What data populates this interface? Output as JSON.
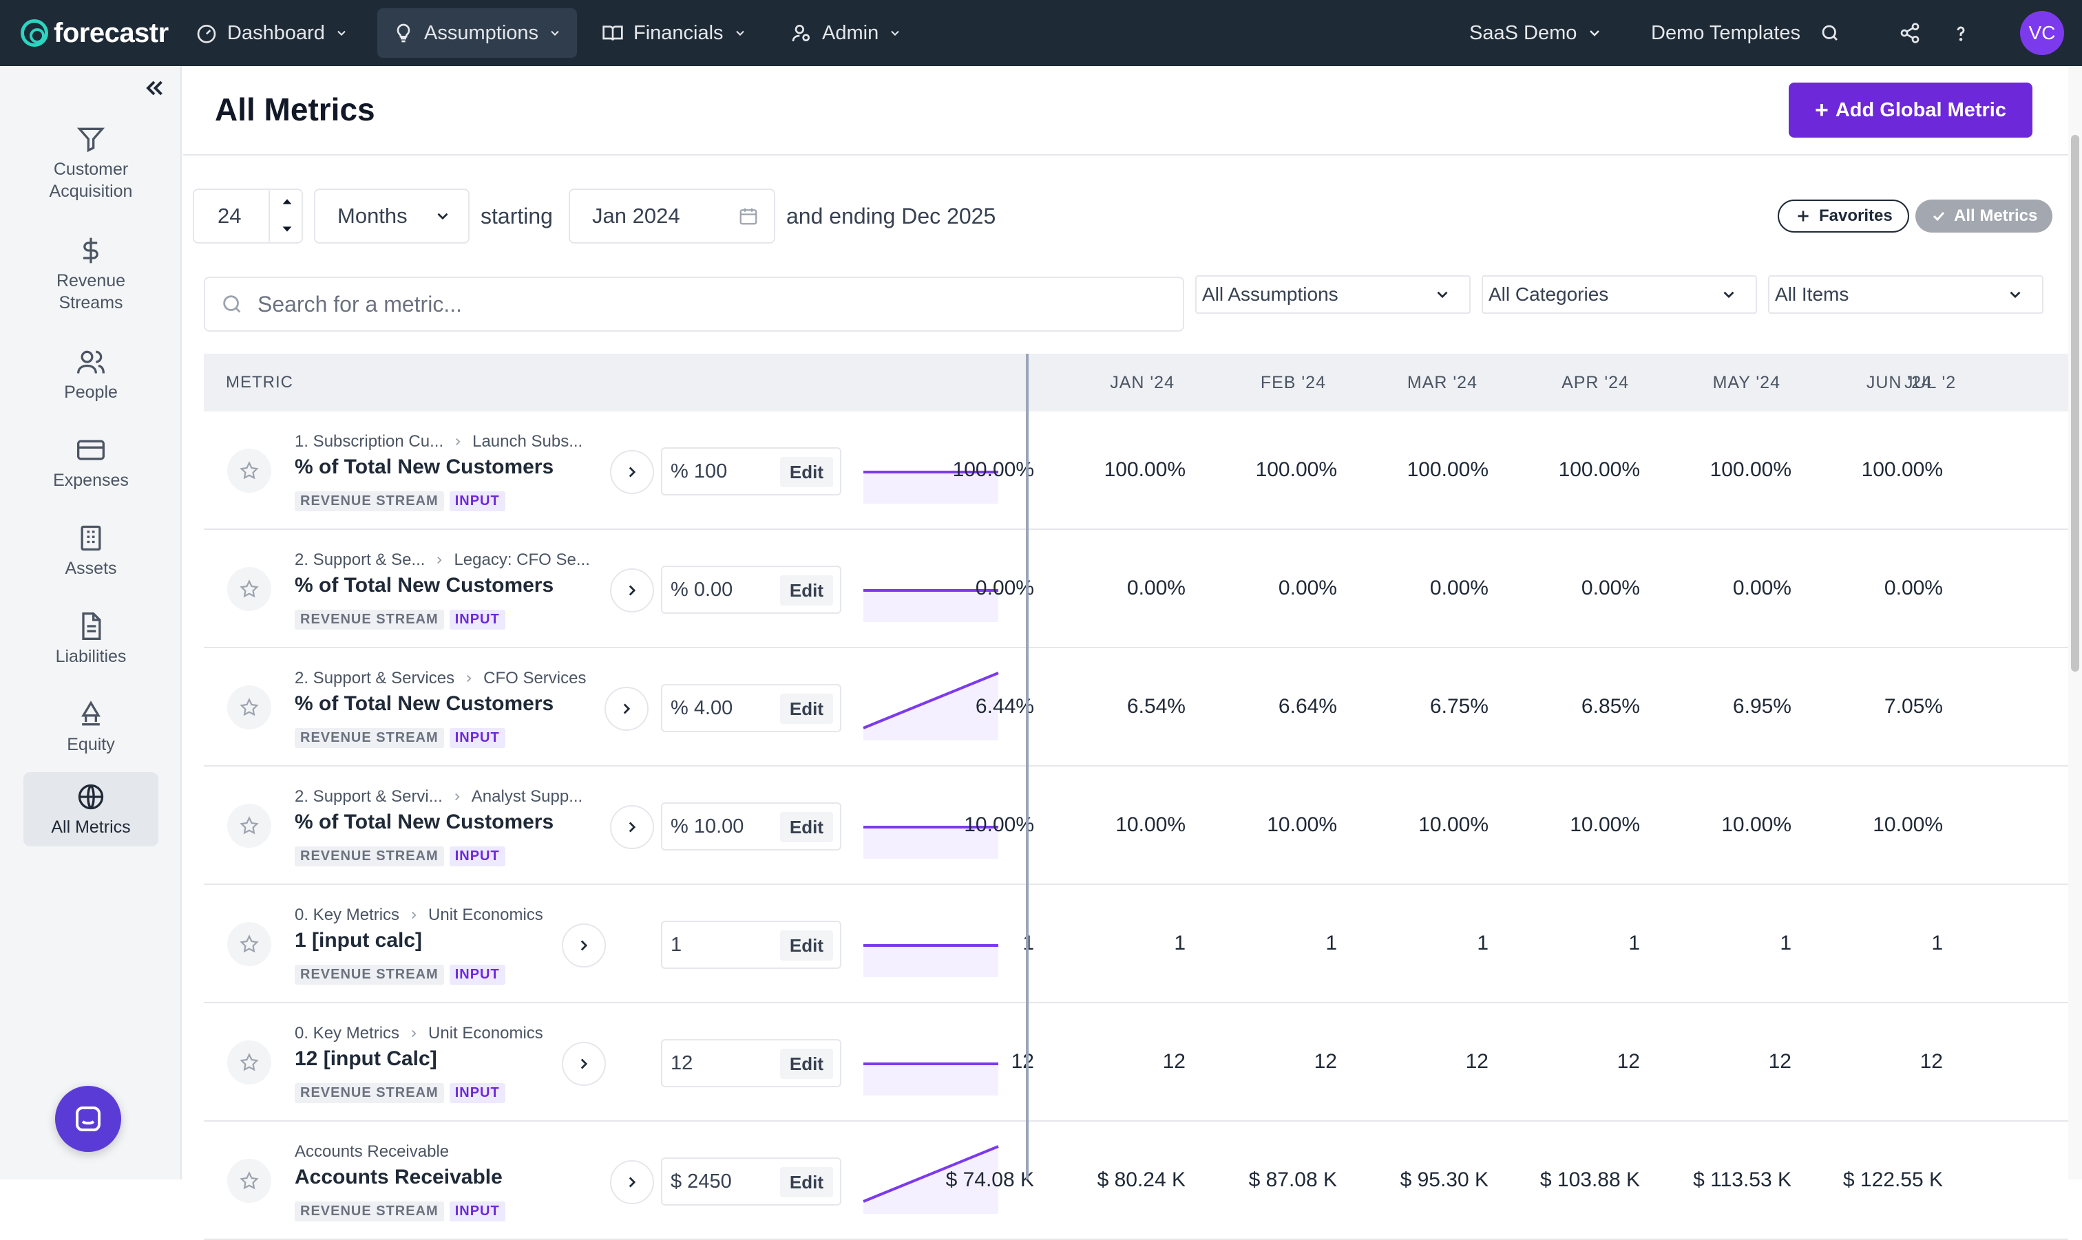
{
  "brand": {
    "name": "forecastr"
  },
  "nav": {
    "items": [
      {
        "label": "Dashboard",
        "icon": "gauge-icon"
      },
      {
        "label": "Assumptions",
        "icon": "lightbulb-icon"
      },
      {
        "label": "Financials",
        "icon": "book-icon"
      },
      {
        "label": "Admin",
        "icon": "user-cog-icon"
      }
    ],
    "workspace": "SaaS Demo",
    "templates": "Demo Templates",
    "avatar_initials": "VC"
  },
  "sidebar": {
    "items": [
      {
        "label": "Customer Acquisition",
        "icon": "funnel-icon"
      },
      {
        "label": "Revenue Streams",
        "icon": "dollar-icon"
      },
      {
        "label": "People",
        "icon": "people-icon"
      },
      {
        "label": "Expenses",
        "icon": "credit-card-icon"
      },
      {
        "label": "Assets",
        "icon": "building-icon"
      },
      {
        "label": "Liabilities",
        "icon": "document-icon"
      },
      {
        "label": "Equity",
        "icon": "bank-icon"
      },
      {
        "label": "All Metrics",
        "icon": "globe-icon"
      }
    ]
  },
  "page": {
    "title": "All Metrics",
    "add_button": "Add Global Metric"
  },
  "controls": {
    "period_count": "24",
    "period_unit": "Months",
    "starting_label": "starting",
    "start_date": "Jan 2024",
    "ending_label": "and ending Dec 2025",
    "favorites_label": "Favorites",
    "all_metrics_label": "All Metrics",
    "search_placeholder": "Search for a metric...",
    "filter_assumptions": "All Assumptions",
    "filter_categories": "All Categories",
    "filter_items": "All Items"
  },
  "table": {
    "metric_header": "METRIC",
    "months": [
      "JAN '24",
      "FEB '24",
      "MAR '24",
      "APR '24",
      "MAY '24",
      "JUN '24",
      "JUL '2"
    ],
    "tag_stream": "REVENUE STREAM",
    "tag_input": "INPUT",
    "edit_label": "Edit",
    "rows": [
      {
        "crumb1": "1. Subscription Cu...",
        "crumb2": "Launch Subs...",
        "name": "% of Total New Customers",
        "value": "% 100",
        "trend": "flat",
        "cells": [
          "100.00%",
          "100.00%",
          "100.00%",
          "100.00%",
          "100.00%",
          "100.00%",
          "100.00%"
        ]
      },
      {
        "crumb1": "2. Support & Se...",
        "crumb2": "Legacy: CFO Se...",
        "name": "% of Total New Customers",
        "value": "% 0.00",
        "trend": "flat",
        "cells": [
          "0.00%",
          "0.00%",
          "0.00%",
          "0.00%",
          "0.00%",
          "0.00%",
          "0.00%"
        ]
      },
      {
        "crumb1": "2. Support & Services",
        "crumb2": "CFO Services",
        "name": "% of Total New Customers",
        "value": "% 4.00",
        "trend": "up",
        "cells": [
          "6.44%",
          "6.54%",
          "6.64%",
          "6.75%",
          "6.85%",
          "6.95%",
          "7.05%"
        ]
      },
      {
        "crumb1": "2. Support & Servi...",
        "crumb2": "Analyst Supp...",
        "name": "% of Total New Customers",
        "value": "% 10.00",
        "trend": "flat",
        "cells": [
          "10.00%",
          "10.00%",
          "10.00%",
          "10.00%",
          "10.00%",
          "10.00%",
          "10.00%"
        ]
      },
      {
        "crumb1": "0. Key Metrics",
        "crumb2": "Unit Economics",
        "name": "1 [input calc]",
        "value": "1",
        "trend": "flat",
        "cells": [
          "1",
          "1",
          "1",
          "1",
          "1",
          "1",
          "1"
        ]
      },
      {
        "crumb1": "0. Key Metrics",
        "crumb2": "Unit Economics",
        "name": "12 [input Calc]",
        "value": "12",
        "trend": "flat",
        "cells": [
          "12",
          "12",
          "12",
          "12",
          "12",
          "12",
          "12"
        ]
      },
      {
        "crumb1": "Accounts Receivable",
        "crumb2": "",
        "name": "Accounts Receivable",
        "value": "$ 2450",
        "trend": "up",
        "cells": [
          "$ 74.08 K",
          "$ 80.24 K",
          "$ 87.08 K",
          "$ 95.30 K",
          "$ 103.88 K",
          "$ 113.53 K",
          "$ 122.55 K"
        ]
      }
    ]
  },
  "colors": {
    "nav_bg": "#1e2a36",
    "accent": "#6d28d9",
    "teal": "#2dd4bf"
  }
}
